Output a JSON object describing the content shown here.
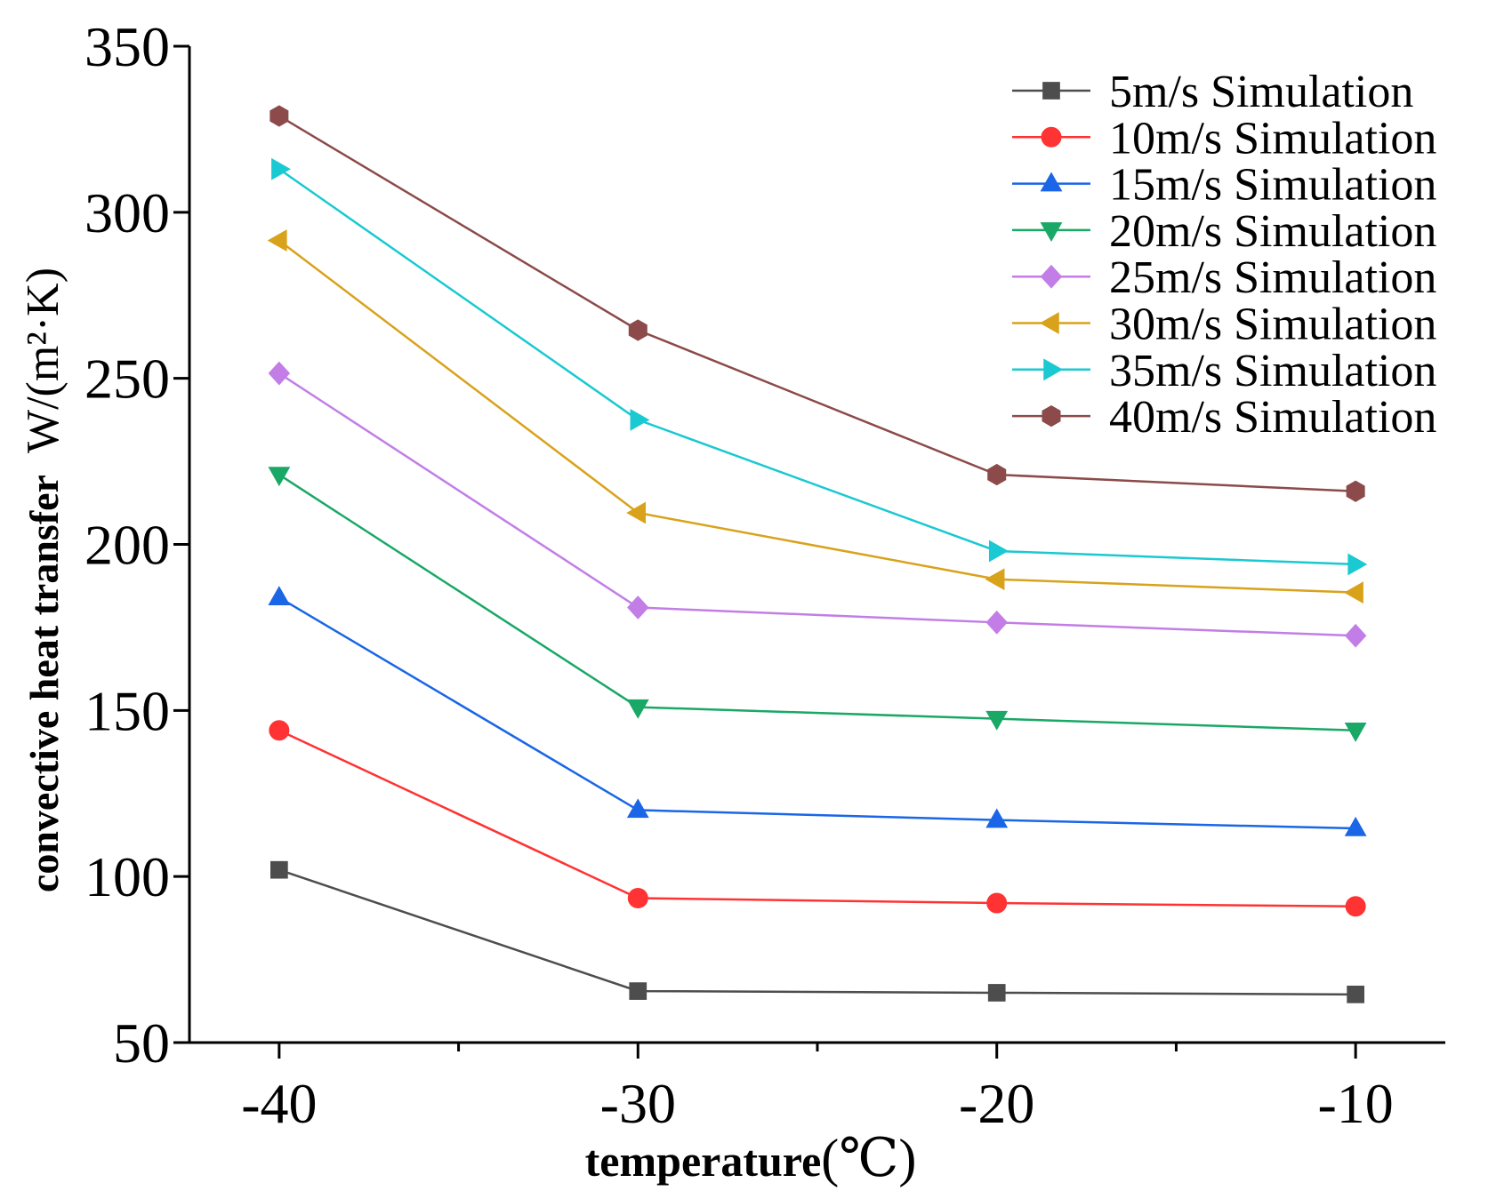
{
  "chart_data": {
    "type": "line",
    "x": [
      -40,
      -30,
      -20,
      -10
    ],
    "xlim": [
      -42.5,
      -7.5
    ],
    "ylim": [
      50,
      350
    ],
    "xticks": [
      -40,
      -30,
      -20,
      -10
    ],
    "xticks_minor": [
      -35,
      -25,
      -15
    ],
    "yticks": [
      50,
      100,
      150,
      200,
      250,
      300,
      350
    ],
    "xtick_labels": [
      "-40",
      "-30",
      "-20",
      "-10"
    ],
    "ytick_labels": [
      "50",
      "100",
      "150",
      "200",
      "250",
      "300",
      "350"
    ],
    "xlabel": "temperature",
    "xlabel_unit": "(℃)",
    "ylabel": "convective heat transfer",
    "ylabel_unit_prefix": "W/",
    "ylabel_unit": "(m²·K)",
    "grid": false,
    "legend_position": "top-right",
    "series": [
      {
        "name": "5m/s Simulation",
        "values": [
          102,
          65.5,
          65,
          64.5
        ],
        "color": "#4d4d4d",
        "marker": "square"
      },
      {
        "name": "10m/s Simulation",
        "values": [
          144,
          93.5,
          92,
          91
        ],
        "color": "#ff3333",
        "marker": "circle"
      },
      {
        "name": "15m/s Simulation",
        "values": [
          184,
          120,
          117,
          114.5
        ],
        "color": "#1a66e6",
        "marker": "triangle-up"
      },
      {
        "name": "20m/s Simulation",
        "values": [
          221,
          151,
          147.5,
          144
        ],
        "color": "#1aa866",
        "marker": "triangle-down"
      },
      {
        "name": "25m/s Simulation",
        "values": [
          251.5,
          181,
          176.5,
          172.5
        ],
        "color": "#c27ee6",
        "marker": "diamond"
      },
      {
        "name": "30m/s Simulation",
        "values": [
          291.5,
          209.5,
          189.5,
          185.5
        ],
        "color": "#d9a21b",
        "marker": "triangle-left"
      },
      {
        "name": "35m/s Simulation",
        "values": [
          313,
          237.5,
          198,
          194
        ],
        "color": "#1ac9d1",
        "marker": "triangle-right"
      },
      {
        "name": "40m/s Simulation",
        "values": [
          329,
          264.5,
          221,
          216
        ],
        "color": "#8c4a4a",
        "marker": "hexagon"
      }
    ]
  }
}
